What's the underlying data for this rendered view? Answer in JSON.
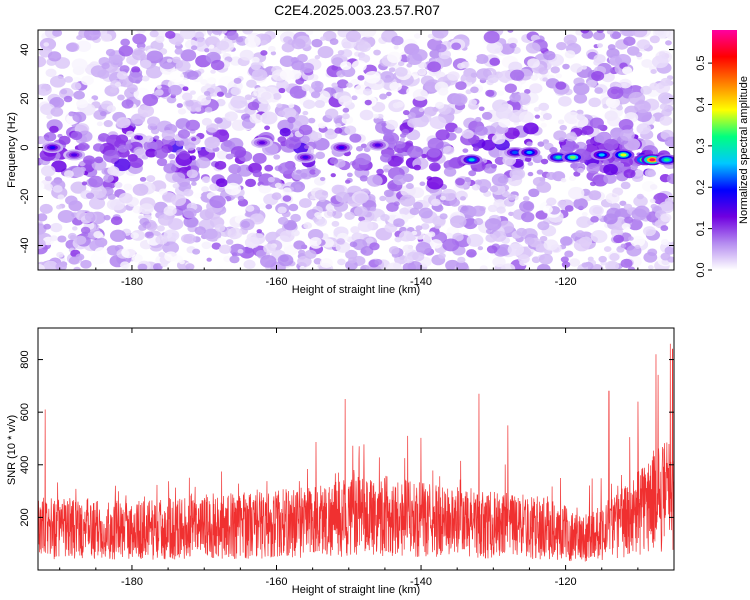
{
  "title": "C2E4.2025.003.23.57.R07",
  "chart_data": [
    {
      "type": "heatmap",
      "xlabel": "Height of straight line (km)",
      "ylabel": "Frequency (Hz)",
      "xlim": [
        -193,
        -105
      ],
      "ylim": [
        -50,
        48
      ],
      "xticks": [
        -180,
        -160,
        -140,
        -120
      ],
      "yticks": [
        -40,
        -20,
        0,
        20,
        40
      ],
      "colorbar": {
        "label": "Normalized spectral amplitude",
        "range": [
          0,
          0.58
        ],
        "ticks": [
          0.0,
          0.1,
          0.2,
          0.3,
          0.4,
          0.5
        ],
        "tick_labels": [
          "0.0",
          "0.1",
          "0.2",
          "0.3",
          "0.4",
          "0.5"
        ],
        "colors": [
          "#ffffff",
          "#b58cf0",
          "#7000e0",
          "#0000ff",
          "#00c8ff",
          "#00ff80",
          "#ffff00",
          "#ff8000",
          "#ff0000",
          "#ff00a0"
        ]
      },
      "ridge_frequency_hz": -3,
      "hotspots": [
        {
          "x": -191,
          "y": 0,
          "amp": 0.18
        },
        {
          "x": -188,
          "y": -3,
          "amp": 0.15
        },
        {
          "x": -162,
          "y": 2,
          "amp": 0.14
        },
        {
          "x": -156,
          "y": -4,
          "amp": 0.16
        },
        {
          "x": -151,
          "y": 0,
          "amp": 0.17
        },
        {
          "x": -146,
          "y": 1,
          "amp": 0.15
        },
        {
          "x": -133,
          "y": -5,
          "amp": 0.28
        },
        {
          "x": -127,
          "y": -2,
          "amp": 0.22
        },
        {
          "x": -125,
          "y": -2,
          "amp": 0.25
        },
        {
          "x": -121,
          "y": -4,
          "amp": 0.3
        },
        {
          "x": -119,
          "y": -4,
          "amp": 0.35
        },
        {
          "x": -115,
          "y": -3,
          "amp": 0.26
        },
        {
          "x": -112,
          "y": -3,
          "amp": 0.38
        },
        {
          "x": -109,
          "y": -5,
          "amp": 0.45
        },
        {
          "x": -108,
          "y": -5,
          "amp": 0.56
        },
        {
          "x": -106,
          "y": -5,
          "amp": 0.32
        }
      ]
    },
    {
      "type": "line",
      "xlabel": "Height of straight line (km)",
      "ylabel": "SNR (10 * v/v)",
      "xlim": [
        -193,
        -105
      ],
      "ylim": [
        0,
        920
      ],
      "xticks": [
        -180,
        -160,
        -140,
        -120
      ],
      "yticks": [
        200,
        400,
        600,
        800
      ],
      "color": "#f03030",
      "baseline": [
        {
          "x": -193,
          "y": 160
        },
        {
          "x": -180,
          "y": 150
        },
        {
          "x": -170,
          "y": 165
        },
        {
          "x": -160,
          "y": 175
        },
        {
          "x": -150,
          "y": 200
        },
        {
          "x": -145,
          "y": 210
        },
        {
          "x": -140,
          "y": 190
        },
        {
          "x": -130,
          "y": 170
        },
        {
          "x": -122,
          "y": 160
        },
        {
          "x": -118,
          "y": 120
        },
        {
          "x": -112,
          "y": 180
        },
        {
          "x": -108,
          "y": 260
        },
        {
          "x": -105,
          "y": 300
        }
      ],
      "peaks": [
        {
          "x": -192,
          "y": 610
        },
        {
          "x": -150.5,
          "y": 650
        },
        {
          "x": -132,
          "y": 670
        },
        {
          "x": -128,
          "y": 550
        },
        {
          "x": -114,
          "y": 680
        },
        {
          "x": -110,
          "y": 640
        },
        {
          "x": -107.5,
          "y": 820
        },
        {
          "x": -105.5,
          "y": 860
        },
        {
          "x": -105.2,
          "y": 840
        }
      ]
    }
  ]
}
